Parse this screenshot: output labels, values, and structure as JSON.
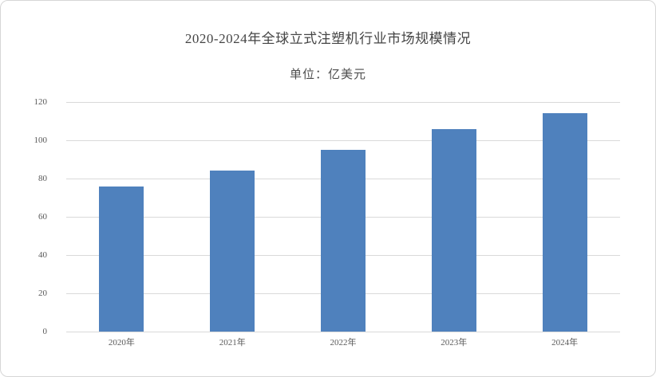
{
  "header": {
    "title": "2020-2024年全球立式注塑机行业市场规模情况",
    "subtitle": "单位：亿美元"
  },
  "colors": {
    "bar": "#4f81bd",
    "gridline": "#d9d9d9",
    "axis_line": "#d9d9d9",
    "axis_text": "#595959",
    "title_text": "#444444",
    "border": "#d6d6d6",
    "background": "#ffffff"
  },
  "chart_data": {
    "type": "bar",
    "title": "2020-2024年全球立式注塑机行业市场规模情况",
    "subtitle": "单位：亿美元",
    "categories": [
      "2020年",
      "2021年",
      "2022年",
      "2023年",
      "2024年"
    ],
    "values": [
      76,
      84,
      95,
      106,
      114
    ],
    "xlabel": "",
    "ylabel": "",
    "ylim": [
      0,
      120
    ],
    "yticks": [
      0,
      20,
      40,
      60,
      80,
      100,
      120
    ],
    "grid": true,
    "legend": "none",
    "data_labels": false
  }
}
